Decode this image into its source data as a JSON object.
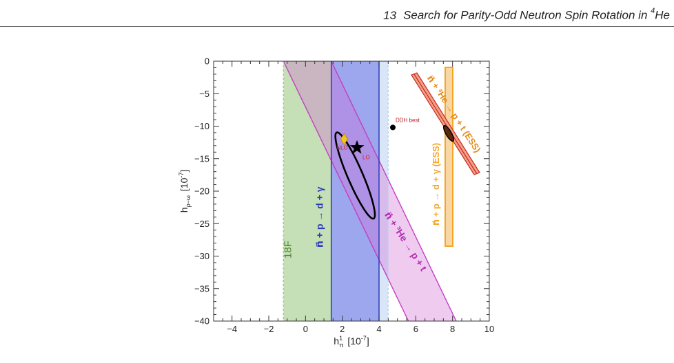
{
  "header": {
    "chapter_number": "13",
    "title_prefix": "Search for Parity-Odd Neutron Spin Rotation in",
    "title_sup": "4",
    "title_suffix": "He"
  },
  "chart_data": {
    "type": "scatter",
    "xlim": [
      -5,
      10
    ],
    "ylim": [
      -40,
      0
    ],
    "xticks": [
      -4,
      -2,
      0,
      2,
      4,
      6,
      8,
      10
    ],
    "yticks": [
      0,
      -5,
      -10,
      -15,
      -20,
      -25,
      -30,
      -35,
      -40
    ],
    "x_tick_labels": [
      "−4",
      "−2",
      "0",
      "2",
      "4",
      "6",
      "8",
      "10"
    ],
    "y_tick_labels": [
      "0",
      "−5",
      "−10",
      "−15",
      "−20",
      "−25",
      "−30",
      "−35",
      "−40"
    ],
    "xlabel": {
      "base": "h",
      "sup": "1",
      "sub": "π",
      "unit": "[10",
      "unit_exp": "-7",
      "unit_close": "]"
    },
    "ylabel": {
      "base": "h",
      "sub": "ρ−ω",
      "unit": "[10",
      "unit_exp": "-7",
      "unit_close": "]"
    },
    "regions": [
      {
        "label": "18F",
        "kind": "vertical_band",
        "x": [
          -1.2,
          1.4
        ],
        "color": "#8cbf70"
      },
      {
        "label": "n⃗ + p → d + γ",
        "kind": "vertical_band",
        "x": [
          1.4,
          4.0
        ],
        "color": "#4a5ee0"
      },
      {
        "label": "dashed_ext",
        "kind": "vertical_band_dashed",
        "x": [
          4.0,
          4.5
        ],
        "color": "#c8dcf5"
      },
      {
        "label": "n⃗ + ³He → p + t",
        "kind": "diagonal_band",
        "top_x": [
          -1.2,
          1.4
        ],
        "bottom_x": [
          5.6,
          8.2
        ],
        "color": "#d36ad3"
      }
    ],
    "ellipse": {
      "center": [
        2.7,
        -17.6
      ],
      "x_range": [
        1.4,
        4.0
      ],
      "y_range": [
        -23.6,
        -9.1
      ]
    },
    "points": [
      {
        "label": "DDH best",
        "x": 4.75,
        "y": -10.2,
        "marker": "circle"
      },
      {
        "label": "NLO",
        "x": 2.1,
        "y": -12.0,
        "marker": "diamond",
        "color": "#f5c518"
      },
      {
        "label": "LO",
        "x": 2.8,
        "y": -13.3,
        "marker": "star"
      }
    ],
    "inset": {
      "orange_band_label": "n⃗ + p → d + γ (ESS)",
      "red_band_label": "n⃗ + ³He → p + t (ESS)",
      "orange_color": "#f5a623",
      "red_color": "#c8281e"
    }
  }
}
